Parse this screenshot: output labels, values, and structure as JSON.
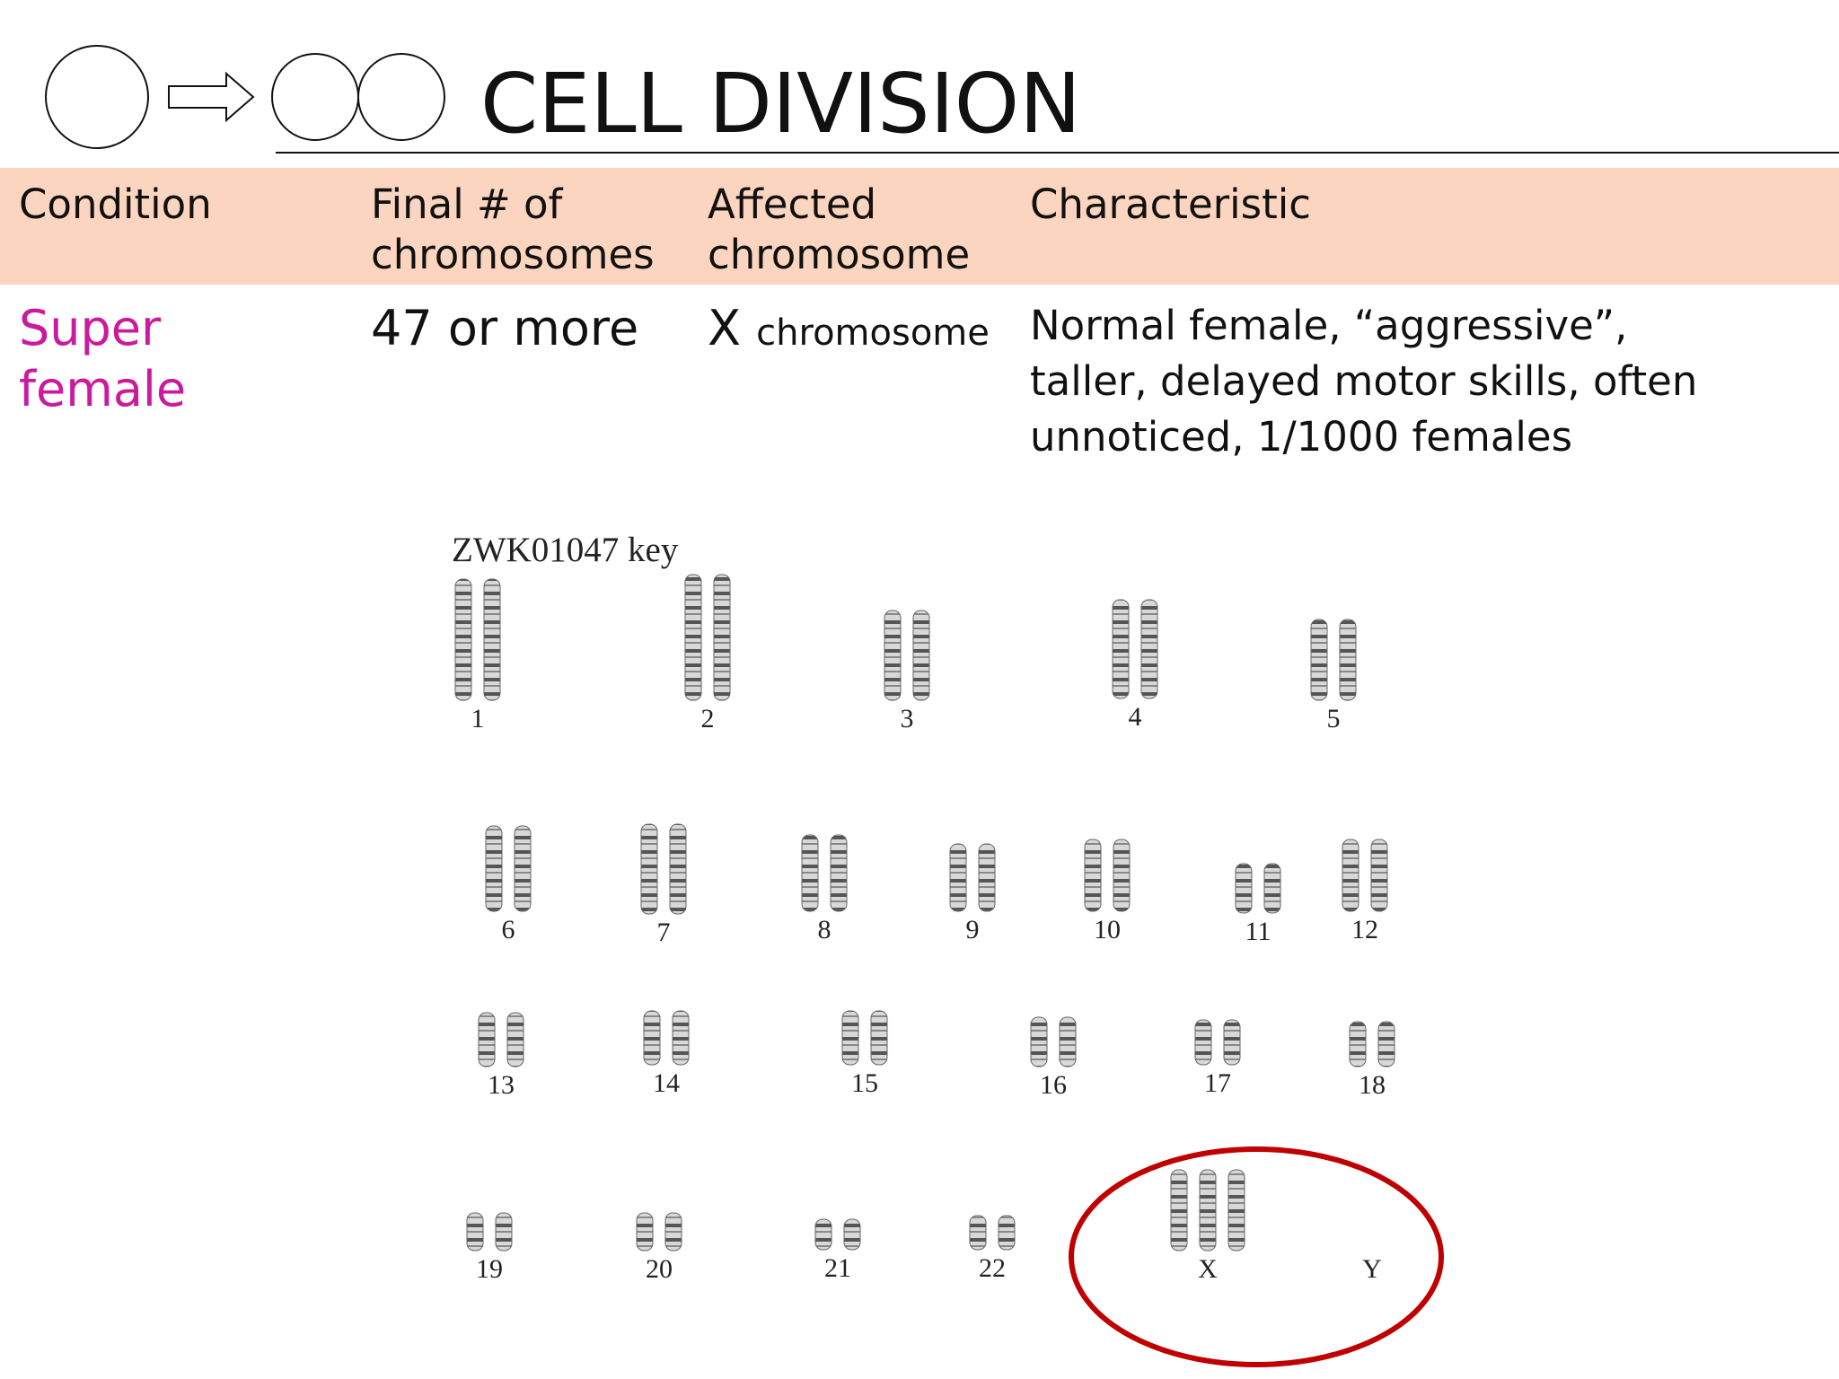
{
  "header": {
    "title": "CELL DIVISION"
  },
  "table": {
    "columns": [
      [
        "Condition"
      ],
      [
        "Final # of",
        "chromosomes"
      ],
      [
        "Affected",
        "chromosome"
      ],
      [
        "Characteristic"
      ]
    ],
    "rows": [
      {
        "condition": [
          "Super",
          "female"
        ],
        "final": "47 or more",
        "affected": [
          "X",
          "chromosome"
        ],
        "characteristic": [
          "Normal female, “aggressive”,",
          "taller, delayed motor skills, often",
          "unnoticed, 1/1000 females"
        ]
      }
    ]
  },
  "karyotype": {
    "title": "ZWK01047 key",
    "labels": [
      "1",
      "2",
      "3",
      "4",
      "5",
      "6",
      "7",
      "8",
      "9",
      "10",
      "11",
      "12",
      "13",
      "14",
      "15",
      "16",
      "17",
      "18",
      "19",
      "20",
      "21",
      "22",
      "X",
      "Y"
    ]
  }
}
